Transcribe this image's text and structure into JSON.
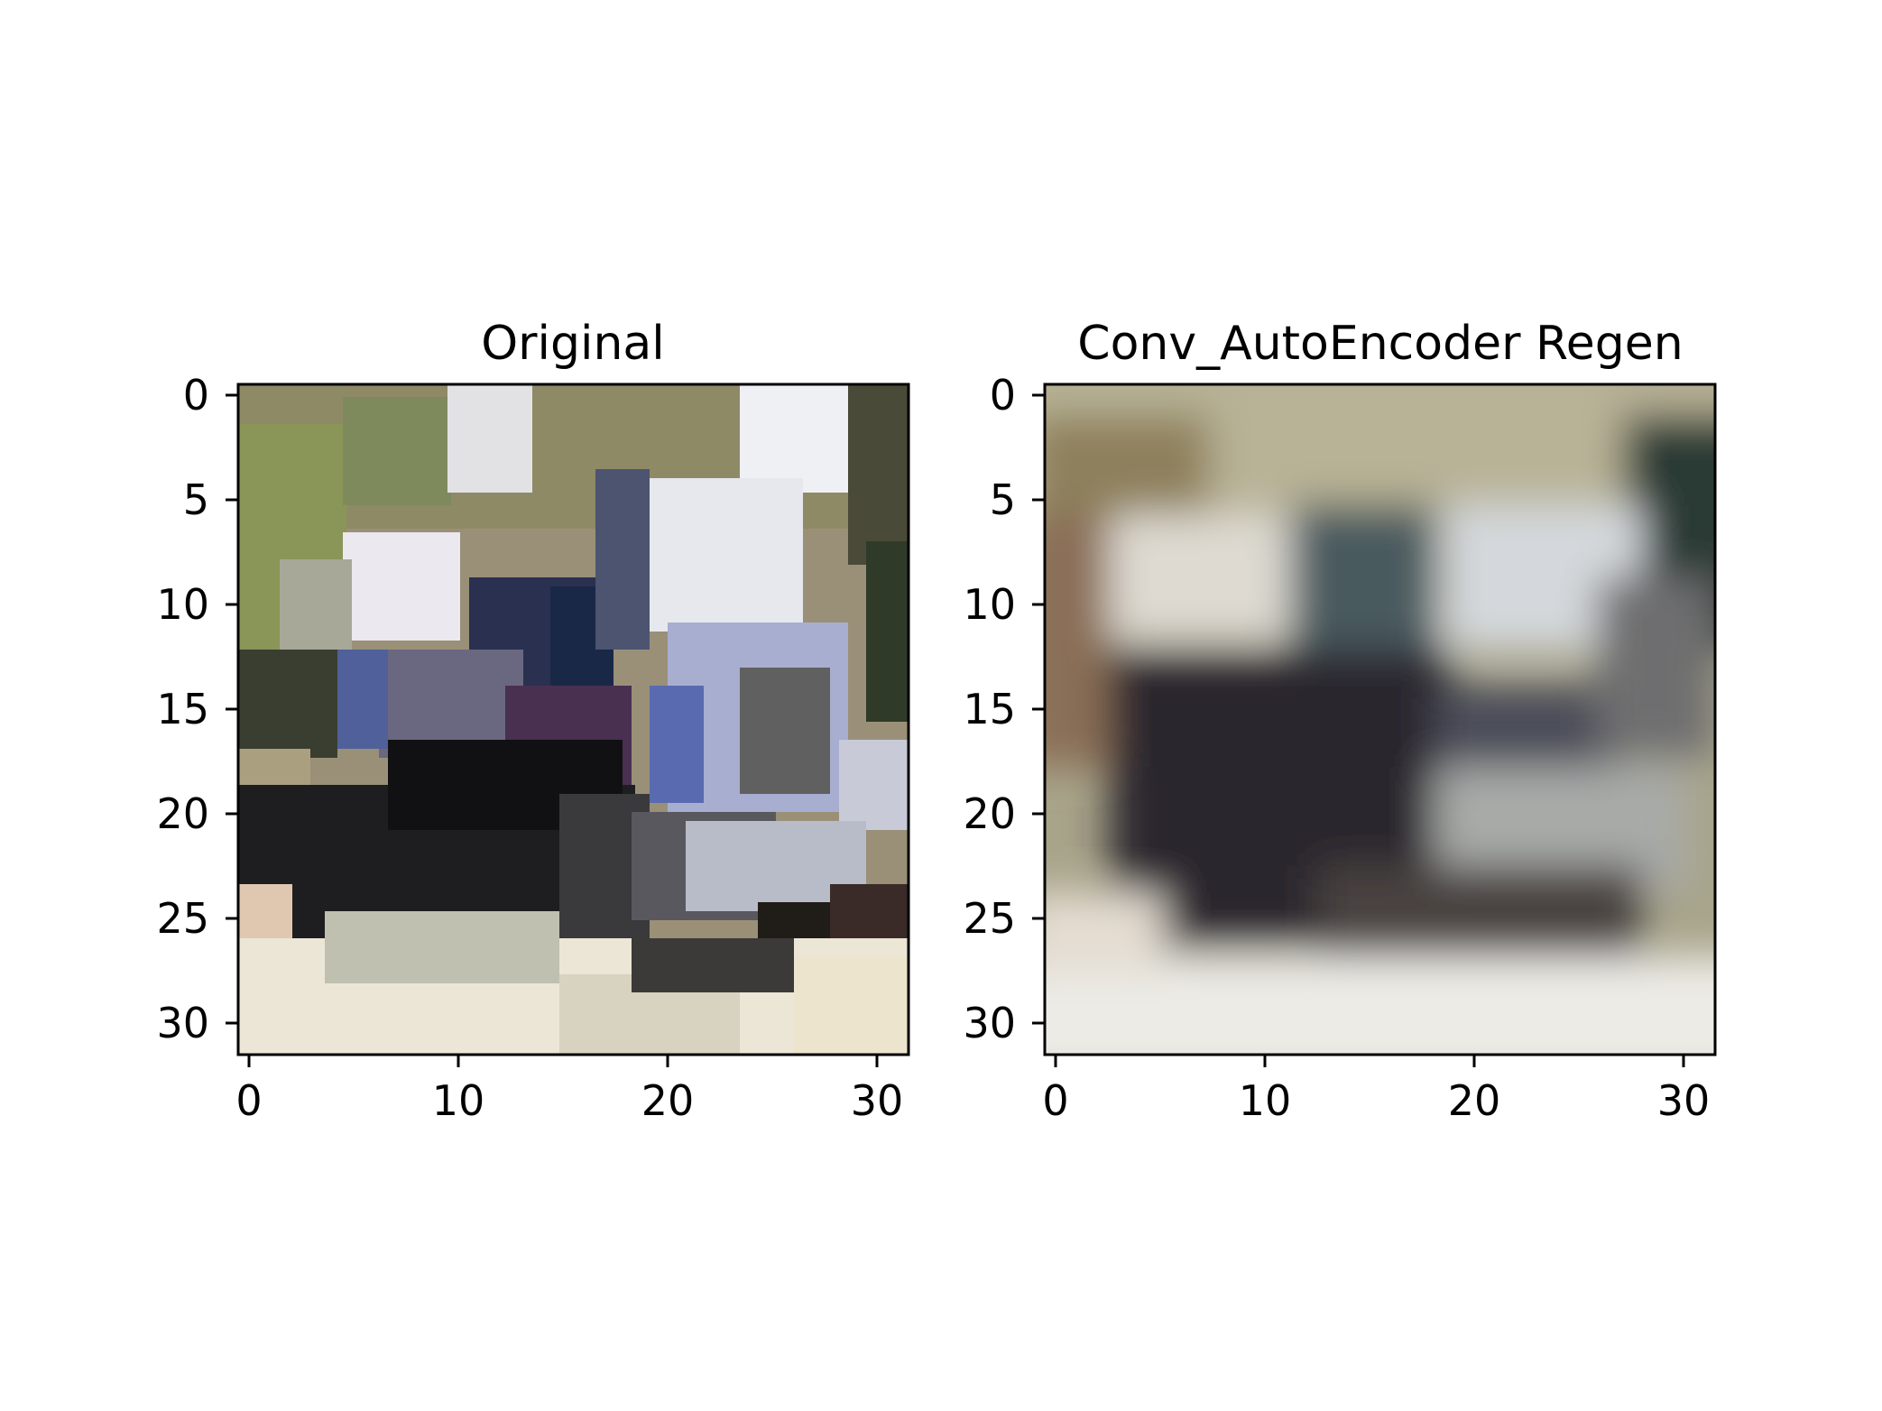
{
  "figure": {
    "panels": [
      {
        "title": "Original",
        "xticks": [
          "0",
          "10",
          "20",
          "30"
        ],
        "yticks": [
          "0",
          "5",
          "10",
          "15",
          "20",
          "25",
          "30"
        ],
        "image_size": [
          32,
          32
        ],
        "palette": [
          "#9a9078",
          "#e4e4e8",
          "#7e8a58",
          "#3f4232",
          "#8a8f9e",
          "#202028",
          "#e8e2d0",
          "#3c4268",
          "#4b3850",
          "#5e5f62"
        ]
      },
      {
        "title": "Conv_AutoEncoder Regen",
        "xticks": [
          "0",
          "10",
          "20",
          "30"
        ],
        "yticks": [
          "0",
          "5",
          "10",
          "15",
          "20",
          "25",
          "30"
        ],
        "image_size": [
          32,
          32
        ],
        "palette": [
          "#aca686",
          "#d2d0c8",
          "#4e5a5e",
          "#2a2c30",
          "#8c8890",
          "#eeece8",
          "#5e5a58",
          "#384540"
        ]
      }
    ]
  }
}
